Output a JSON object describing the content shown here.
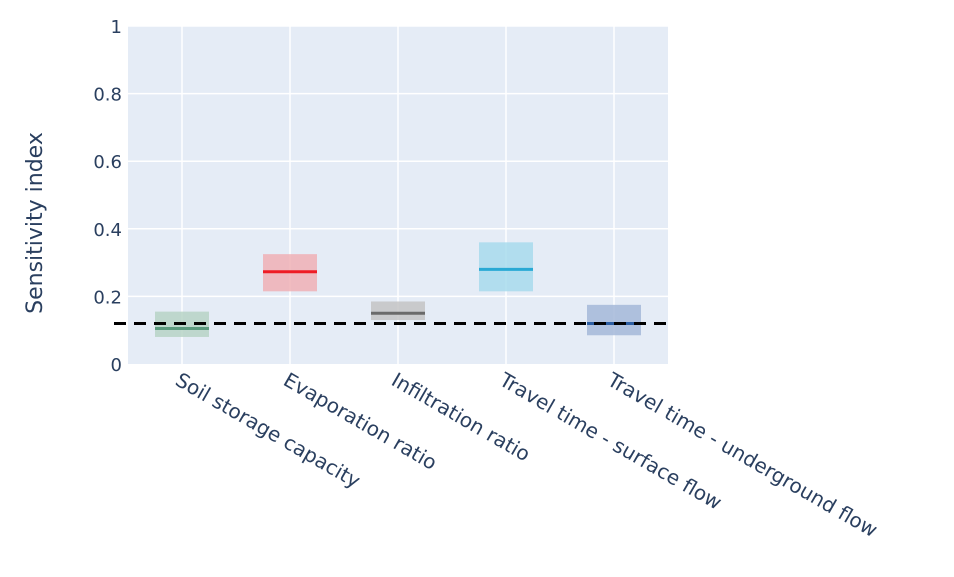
{
  "chart_data": {
    "type": "box",
    "ylabel": "Sensitivity index",
    "xlabel": "",
    "ylim": [
      0,
      1
    ],
    "yticks": [
      0,
      0.2,
      0.4,
      0.6,
      0.8,
      1
    ],
    "ytick_labels": [
      "0",
      "0.2",
      "0.4",
      "0.6",
      "0.8",
      "1"
    ],
    "grid": true,
    "reference_line": {
      "value": 0.12,
      "style": "dashed",
      "color": "#000000"
    },
    "categories": [
      "Soil storage capacity",
      "Evaporation ratio",
      "Infiltration ratio",
      "Travel time - surface flow",
      "Travel time - underground flow"
    ],
    "series": [
      {
        "category": "Soil storage capacity",
        "low": 0.08,
        "median": 0.105,
        "high": 0.155,
        "color": "#5b9a7e",
        "fill": "#b7d3c5"
      },
      {
        "category": "Evaporation ratio",
        "low": 0.215,
        "median": 0.273,
        "high": 0.325,
        "color": "#ee1c25",
        "fill": "#f0b0b5"
      },
      {
        "category": "Infiltration ratio",
        "low": 0.13,
        "median": 0.15,
        "high": 0.185,
        "color": "#6a6a6a",
        "fill": "#c4c4c4"
      },
      {
        "category": "Travel time - surface flow",
        "low": 0.215,
        "median": 0.28,
        "high": 0.36,
        "color": "#29a9d4",
        "fill": "#a8daec"
      },
      {
        "category": "Travel time - underground flow",
        "low": 0.085,
        "median": 0.12,
        "high": 0.175,
        "color": "#2d5ea2",
        "fill": "#a5b8d8"
      }
    ]
  }
}
